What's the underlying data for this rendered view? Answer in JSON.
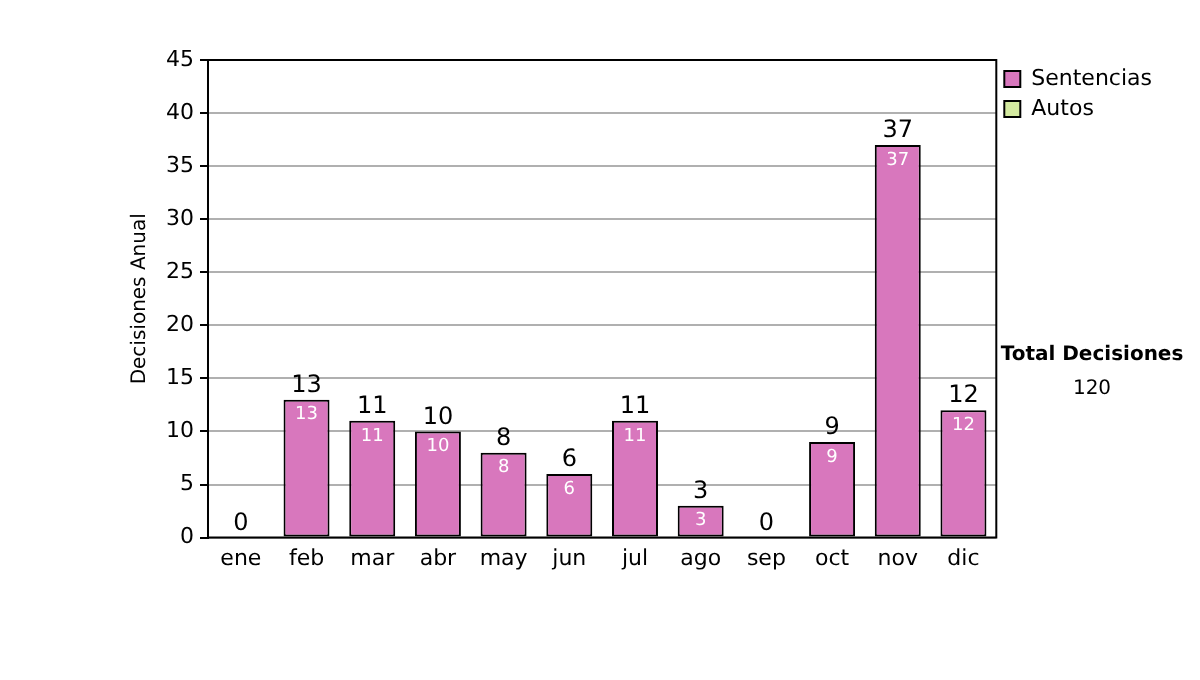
{
  "chart_data": {
    "type": "bar",
    "ylabel": "Decisiones Anual",
    "categories": [
      "ene",
      "feb",
      "mar",
      "abr",
      "may",
      "jun",
      "jul",
      "ago",
      "sep",
      "oct",
      "nov",
      "dic"
    ],
    "stacked": true,
    "series": [
      {
        "name": "Sentencias",
        "color": "#d877bd",
        "values": [
          0,
          13,
          11,
          10,
          8,
          6,
          11,
          3,
          0,
          9,
          37,
          12
        ],
        "value_labels": [
          null,
          "13",
          "11",
          "10",
          "8",
          "6",
          "11",
          "3",
          null,
          "9",
          "37",
          "12"
        ]
      },
      {
        "name": "Autos",
        "color": "#d4eaa0",
        "values": [
          0,
          0,
          0,
          0,
          0,
          0,
          0,
          0,
          0,
          0,
          0,
          0
        ],
        "value_labels": [
          null,
          null,
          null,
          null,
          null,
          null,
          null,
          null,
          null,
          null,
          null,
          null
        ]
      }
    ],
    "totals": [
      "0",
      "13",
      "11",
      "10",
      "8",
      "6",
      "11",
      "3",
      "0",
      "9",
      "37",
      "12"
    ],
    "ylim": [
      0,
      45
    ],
    "yticks": [
      0,
      5,
      10,
      15,
      20,
      25,
      30,
      35,
      40,
      45
    ],
    "grid": "y",
    "legend": "right",
    "annotations": [
      "Total Decisiones",
      "120"
    ]
  }
}
